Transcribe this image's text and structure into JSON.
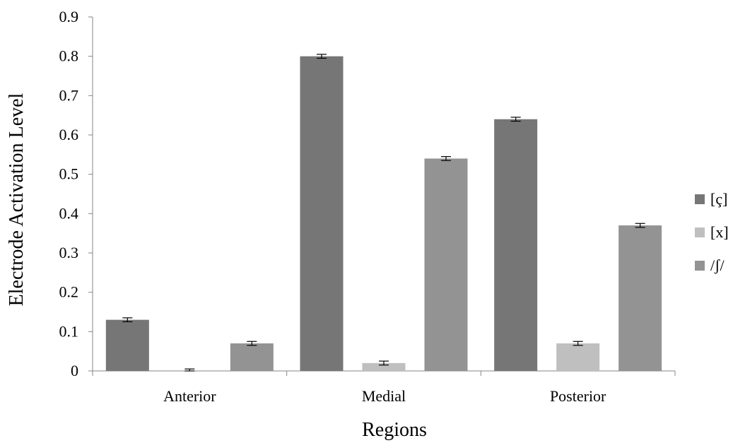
{
  "chart_data": {
    "type": "bar",
    "title": "",
    "xlabel": "Regions",
    "ylabel": "Electrode Activation Level",
    "categories": [
      "Anterior",
      "Medial",
      "Posterior"
    ],
    "series": [
      {
        "name": "[ç]",
        "values": [
          0.13,
          0.8,
          0.64
        ],
        "errors": [
          0.005,
          0.005,
          0.005
        ],
        "color": "#767676"
      },
      {
        "name": "[x]",
        "values": [
          0.0,
          0.02,
          0.07
        ],
        "errors": [
          0.005,
          0.005,
          0.005
        ],
        "color": "#bfbfbf"
      },
      {
        "name": "/ʃ/",
        "values": [
          0.07,
          0.54,
          0.37
        ],
        "errors": [
          0.005,
          0.005,
          0.005
        ],
        "color": "#939393"
      }
    ],
    "ylim": [
      0,
      0.9
    ],
    "yticks": [
      "0",
      "0.1",
      "0.2",
      "0.3",
      "0.4",
      "0.5",
      "0.6",
      "0.7",
      "0.8",
      "0.9"
    ],
    "grid": false,
    "legend_position": "right"
  }
}
